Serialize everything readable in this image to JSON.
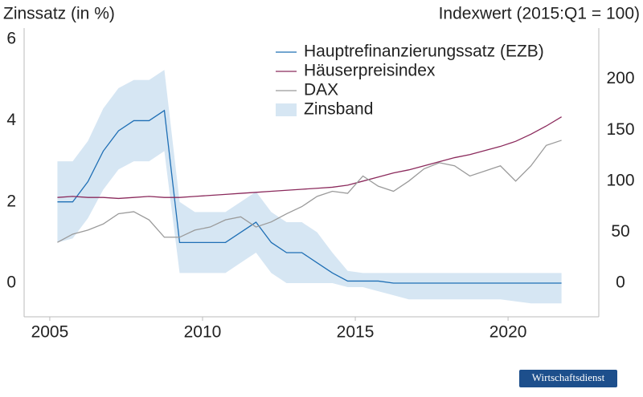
{
  "chart_data": {
    "type": "line",
    "y_label": "Zinssatz (in %)",
    "y2_label": "Indexwert (2015:Q1 = 100)",
    "source": "Wirtschaftsdienst",
    "x": [
      2005.25,
      2005.75,
      2006.25,
      2006.75,
      2007.25,
      2007.75,
      2008.25,
      2008.75,
      2009.25,
      2009.75,
      2010.25,
      2010.75,
      2011.25,
      2011.75,
      2012.25,
      2012.75,
      2013.25,
      2013.75,
      2014.25,
      2014.75,
      2015.25,
      2015.75,
      2016.25,
      2016.75,
      2017.25,
      2017.75,
      2018.25,
      2018.75,
      2019.25,
      2019.75,
      2020.25,
      2020.75,
      2021.25,
      2021.75
    ],
    "xlim": [
      2004.16,
      2022.97
    ],
    "xticks": [
      2005,
      2010,
      2015,
      2020
    ],
    "ylim": [
      -0.83,
      6.28
    ],
    "yticks": [
      0,
      2,
      4,
      6
    ],
    "y2lim": [
      -33,
      250
    ],
    "y2ticks": [
      0,
      50,
      100,
      150,
      200
    ],
    "series": [
      {
        "name": "Hauptrefinanzierungssatz (EZB)",
        "color": "#1f6fb5",
        "values": [
          2.0,
          2.0,
          2.5,
          3.25,
          3.75,
          4.0,
          4.0,
          4.25,
          1.0,
          1.0,
          1.0,
          1.0,
          1.25,
          1.5,
          1.0,
          0.75,
          0.75,
          0.5,
          0.25,
          0.05,
          0.05,
          0.05,
          0,
          0,
          0,
          0,
          0,
          0,
          0,
          0,
          0,
          0,
          0,
          0
        ]
      },
      {
        "name": "Häuserpreisindex",
        "color": "#8b2a5c",
        "axis": "y2",
        "values": [
          84,
          85,
          84,
          84,
          83,
          84,
          85,
          84,
          84,
          85,
          86,
          87,
          88,
          89,
          90,
          91,
          92,
          93,
          94,
          96,
          100,
          104,
          108,
          111,
          115,
          119,
          123,
          126,
          130,
          134,
          139,
          146,
          154,
          163
        ]
      },
      {
        "name": "DAX",
        "color": "#9a9a9a",
        "axis": "y2",
        "values": [
          40,
          48,
          52,
          58,
          68,
          70,
          62,
          45,
          45,
          52,
          55,
          62,
          65,
          55,
          60,
          68,
          75,
          85,
          90,
          88,
          105,
          95,
          90,
          100,
          112,
          118,
          115,
          105,
          110,
          115,
          100,
          115,
          135,
          140
        ]
      },
      {
        "name": "Zinsband",
        "color": "#d6e6f3",
        "upper": [
          3.0,
          3.0,
          3.5,
          4.3,
          4.8,
          5.0,
          5.0,
          5.25,
          2.0,
          1.75,
          1.75,
          1.75,
          2.0,
          2.25,
          1.75,
          1.5,
          1.5,
          1.25,
          0.75,
          0.3,
          0.25,
          0.25,
          0.25,
          0.25,
          0.25,
          0.25,
          0.25,
          0.25,
          0.25,
          0.25,
          0.25,
          0.25,
          0.25,
          0.25
        ],
        "lower": [
          1.0,
          1.1,
          1.6,
          2.3,
          2.8,
          3.0,
          3.0,
          3.25,
          0.25,
          0.25,
          0.25,
          0.25,
          0.5,
          0.75,
          0.25,
          0,
          0,
          0,
          0,
          -0.1,
          -0.1,
          -0.2,
          -0.3,
          -0.4,
          -0.4,
          -0.4,
          -0.4,
          -0.4,
          -0.4,
          -0.4,
          -0.45,
          -0.5,
          -0.5,
          -0.5
        ]
      }
    ]
  }
}
